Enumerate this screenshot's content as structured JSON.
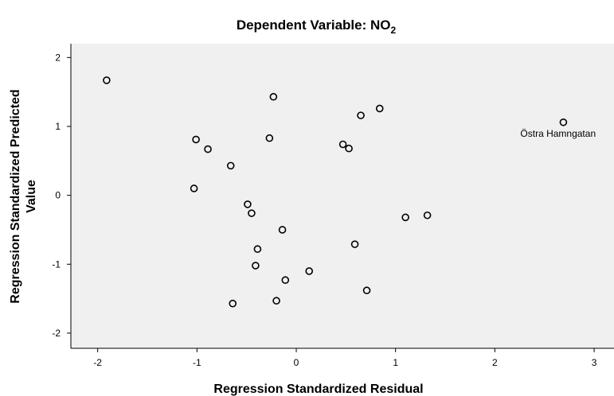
{
  "chart_data": {
    "type": "scatter",
    "title_prefix": "Dependent Variable: NO",
    "title_subscript": "2",
    "xlabel": "Regression Standardized Residual",
    "ylabel_line1": "Regression Standardized Predicted",
    "ylabel_line2": "Value",
    "xlim": [
      -2.27,
      3.2
    ],
    "ylim": [
      -2.22,
      2.2
    ],
    "x_ticks": [
      -2,
      -1,
      0,
      1,
      2,
      3
    ],
    "x_tick_labels": [
      "-2",
      "-1",
      "0",
      "1",
      "2",
      "3"
    ],
    "y_ticks": [
      -2,
      -1,
      0,
      1,
      2
    ],
    "y_tick_labels": [
      "-2",
      "-1",
      "0",
      "1",
      "2"
    ],
    "grid": false,
    "colors": {
      "plot_bg": "#f0f0f0",
      "marker": "#000000"
    },
    "points": [
      {
        "x": -1.91,
        "y": 1.67
      },
      {
        "x": -0.23,
        "y": 1.43
      },
      {
        "x": 0.84,
        "y": 1.26
      },
      {
        "x": 0.65,
        "y": 1.16
      },
      {
        "x": 2.69,
        "y": 1.06,
        "label": "Östra Hamngatan"
      },
      {
        "x": -1.01,
        "y": 0.81
      },
      {
        "x": -0.27,
        "y": 0.83
      },
      {
        "x": -0.89,
        "y": 0.67
      },
      {
        "x": 0.47,
        "y": 0.74
      },
      {
        "x": 0.53,
        "y": 0.68
      },
      {
        "x": -0.66,
        "y": 0.43
      },
      {
        "x": -1.03,
        "y": 0.1
      },
      {
        "x": -0.49,
        "y": -0.13
      },
      {
        "x": -0.45,
        "y": -0.26
      },
      {
        "x": 1.1,
        "y": -0.32
      },
      {
        "x": 1.32,
        "y": -0.29
      },
      {
        "x": -0.14,
        "y": -0.5
      },
      {
        "x": 0.59,
        "y": -0.71
      },
      {
        "x": -0.39,
        "y": -0.78
      },
      {
        "x": -0.41,
        "y": -1.02
      },
      {
        "x": 0.13,
        "y": -1.1
      },
      {
        "x": -0.11,
        "y": -1.23
      },
      {
        "x": 0.71,
        "y": -1.38
      },
      {
        "x": -0.2,
        "y": -1.53
      },
      {
        "x": -0.64,
        "y": -1.57
      }
    ]
  }
}
